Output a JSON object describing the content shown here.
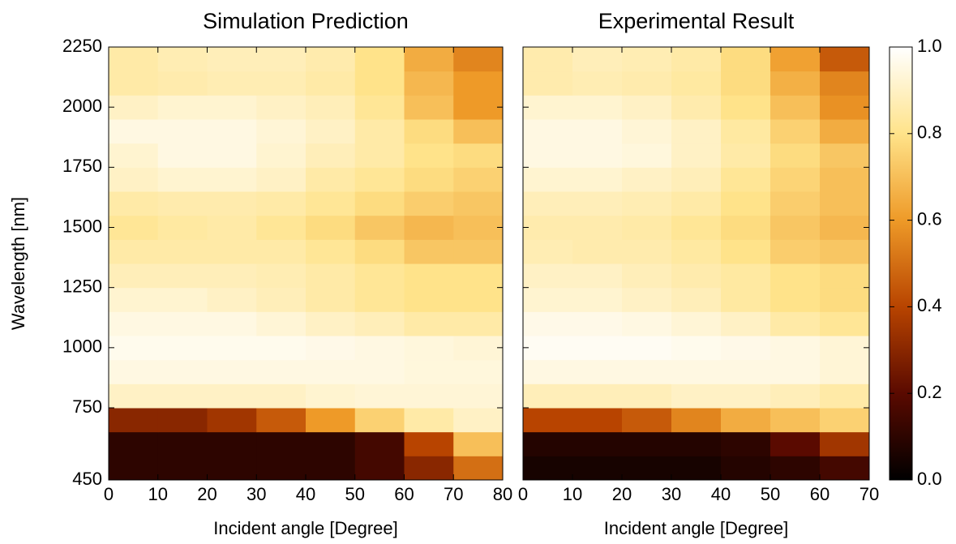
{
  "chart_data": [
    {
      "type": "heatmap",
      "title": "Simulation Prediction",
      "xlabel": "Incident angle [Degree]",
      "ylabel": "Wavelength [nm]",
      "xlim": [
        0,
        80
      ],
      "ylim": [
        450,
        2250
      ],
      "xticks": [
        0,
        10,
        20,
        30,
        40,
        50,
        60,
        70,
        80
      ],
      "yticks": [
        450,
        750,
        1000,
        1250,
        1500,
        1750,
        2000,
        2250
      ],
      "xbins": [
        0,
        10,
        20,
        30,
        40,
        50,
        60,
        70,
        80
      ],
      "ybins": [
        450,
        550,
        650,
        750,
        850,
        950,
        1050,
        1150,
        1250,
        1350,
        1450,
        1550,
        1650,
        1750,
        1850,
        1950,
        2050,
        2150,
        2250
      ],
      "colormap": [
        "#000000",
        "#5a0a00",
        "#b84400",
        "#ee9a28",
        "#ffe38a",
        "#ffffff"
      ],
      "zlim": [
        0,
        1
      ],
      "z": [
        [
          0.1,
          0.1,
          0.1,
          0.1,
          0.1,
          0.15,
          0.3,
          0.5
        ],
        [
          0.1,
          0.1,
          0.1,
          0.1,
          0.1,
          0.15,
          0.4,
          0.7
        ],
        [
          0.3,
          0.3,
          0.35,
          0.45,
          0.6,
          0.75,
          0.85,
          0.9
        ],
        [
          0.9,
          0.9,
          0.9,
          0.9,
          0.92,
          0.93,
          0.93,
          0.93
        ],
        [
          0.95,
          0.95,
          0.95,
          0.95,
          0.95,
          0.95,
          0.94,
          0.94
        ],
        [
          0.97,
          0.97,
          0.97,
          0.97,
          0.96,
          0.95,
          0.94,
          0.93
        ],
        [
          0.95,
          0.95,
          0.95,
          0.93,
          0.9,
          0.88,
          0.85,
          0.85
        ],
        [
          0.92,
          0.92,
          0.9,
          0.88,
          0.85,
          0.82,
          0.8,
          0.8
        ],
        [
          0.88,
          0.88,
          0.88,
          0.87,
          0.85,
          0.82,
          0.8,
          0.8
        ],
        [
          0.85,
          0.85,
          0.85,
          0.85,
          0.82,
          0.78,
          0.72,
          0.72
        ],
        [
          0.82,
          0.84,
          0.85,
          0.82,
          0.78,
          0.72,
          0.68,
          0.7
        ],
        [
          0.85,
          0.86,
          0.86,
          0.85,
          0.82,
          0.78,
          0.74,
          0.72
        ],
        [
          0.9,
          0.92,
          0.92,
          0.9,
          0.85,
          0.82,
          0.78,
          0.75
        ],
        [
          0.92,
          0.95,
          0.95,
          0.92,
          0.88,
          0.85,
          0.8,
          0.78
        ],
        [
          0.95,
          0.95,
          0.95,
          0.93,
          0.9,
          0.85,
          0.78,
          0.7
        ],
        [
          0.9,
          0.92,
          0.92,
          0.9,
          0.88,
          0.82,
          0.7,
          0.6
        ],
        [
          0.85,
          0.86,
          0.87,
          0.87,
          0.85,
          0.8,
          0.68,
          0.6
        ],
        [
          0.85,
          0.87,
          0.88,
          0.88,
          0.86,
          0.8,
          0.65,
          0.55
        ]
      ]
    },
    {
      "type": "heatmap",
      "title": "Experimental Result",
      "xlabel": "Incident angle [Degree]",
      "xlim": [
        0,
        70
      ],
      "ylim": [
        450,
        2250
      ],
      "xticks": [
        0,
        10,
        20,
        30,
        40,
        50,
        60,
        70
      ],
      "yticks": [
        450,
        750,
        1000,
        1250,
        1500,
        1750,
        2000,
        2250
      ],
      "xbins": [
        0,
        10,
        20,
        30,
        40,
        50,
        60,
        70
      ],
      "ybins": [
        450,
        550,
        650,
        750,
        850,
        950,
        1050,
        1150,
        1250,
        1350,
        1450,
        1550,
        1650,
        1750,
        1850,
        1950,
        2050,
        2150,
        2250
      ],
      "colormap": [
        "#000000",
        "#5a0a00",
        "#b84400",
        "#ee9a28",
        "#ffe38a",
        "#ffffff"
      ],
      "zlim": [
        0,
        1
      ],
      "zticks": [
        {
          "value": 0,
          "label": "0.0"
        },
        {
          "value": 0.2,
          "label": "0.2"
        },
        {
          "value": 0.4,
          "label": "0.4"
        },
        {
          "value": 0.6,
          "label": "0.6"
        },
        {
          "value": 0.8,
          "label": "0.8"
        },
        {
          "value": 1,
          "label": "1.0"
        }
      ],
      "z": [
        [
          0.05,
          0.05,
          0.05,
          0.05,
          0.08,
          0.1,
          0.15
        ],
        [
          0.08,
          0.08,
          0.08,
          0.08,
          0.1,
          0.2,
          0.35
        ],
        [
          0.4,
          0.4,
          0.45,
          0.55,
          0.65,
          0.7,
          0.75
        ],
        [
          0.88,
          0.88,
          0.88,
          0.9,
          0.9,
          0.88,
          0.85
        ],
        [
          0.95,
          0.95,
          0.95,
          0.95,
          0.95,
          0.95,
          0.93
        ],
        [
          0.98,
          0.98,
          0.98,
          0.97,
          0.96,
          0.95,
          0.93
        ],
        [
          0.96,
          0.96,
          0.95,
          0.93,
          0.9,
          0.85,
          0.82
        ],
        [
          0.92,
          0.92,
          0.9,
          0.88,
          0.84,
          0.8,
          0.78
        ],
        [
          0.9,
          0.9,
          0.88,
          0.86,
          0.84,
          0.8,
          0.78
        ],
        [
          0.87,
          0.86,
          0.86,
          0.84,
          0.8,
          0.74,
          0.72
        ],
        [
          0.86,
          0.86,
          0.85,
          0.82,
          0.78,
          0.72,
          0.68
        ],
        [
          0.88,
          0.88,
          0.87,
          0.85,
          0.8,
          0.74,
          0.7
        ],
        [
          0.92,
          0.92,
          0.9,
          0.88,
          0.82,
          0.76,
          0.7
        ],
        [
          0.95,
          0.95,
          0.94,
          0.9,
          0.85,
          0.78,
          0.72
        ],
        [
          0.95,
          0.95,
          0.93,
          0.9,
          0.84,
          0.75,
          0.65
        ],
        [
          0.92,
          0.92,
          0.9,
          0.86,
          0.8,
          0.7,
          0.58
        ],
        [
          0.86,
          0.87,
          0.86,
          0.84,
          0.78,
          0.66,
          0.55
        ],
        [
          0.86,
          0.88,
          0.87,
          0.85,
          0.78,
          0.62,
          0.45
        ]
      ]
    }
  ]
}
